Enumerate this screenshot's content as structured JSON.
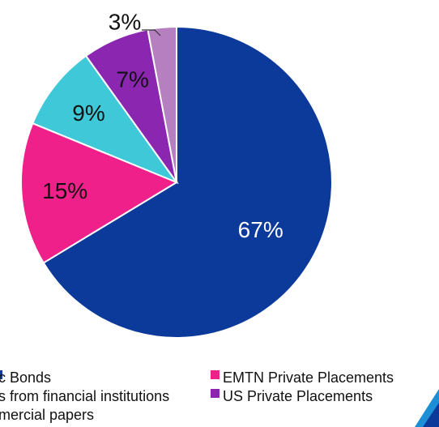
{
  "chart_data": {
    "type": "pie",
    "categories": [
      "Public Bonds",
      "EMTN Private Placements",
      "Loans from financial institutions",
      "US Private Placements",
      "Commercial papers"
    ],
    "values": [
      67,
      15,
      9,
      7,
      3
    ],
    "labels": [
      "67%",
      "15%",
      "9%",
      "7%",
      "3%"
    ],
    "colors": [
      "#0b3a9b",
      "#f0208a",
      "#3ec8d8",
      "#8a26b0",
      "#b57fc0"
    ],
    "label_colors": [
      "#ffffff",
      "#111111",
      "#111111",
      "#111111",
      "#111111"
    ],
    "legend": {
      "items": [
        "c Bonds",
        "EMTN Private Placements",
        "s from financial institutions",
        "US Private Placements",
        "mercial papers"
      ],
      "position": "bottom"
    }
  }
}
